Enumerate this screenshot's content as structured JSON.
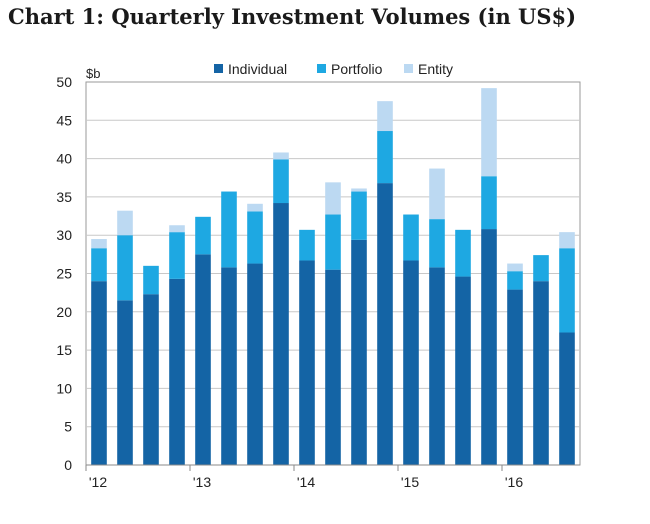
{
  "chart_data": {
    "type": "bar",
    "stacked": true,
    "title": "Chart 1: Quarterly Investment Volumes (in US$)",
    "unit_label": "$b",
    "ylim": [
      0,
      50
    ],
    "y_ticks": [
      "0",
      "5",
      "10",
      "15",
      "20",
      "25",
      "30",
      "35",
      "40",
      "45",
      "50"
    ],
    "x_tick_labels": [
      "'12",
      "'13",
      "'14",
      "'15",
      "'16"
    ],
    "legend_position": "top",
    "grid": "horizontal",
    "categories": [
      "Q1 '12",
      "Q2 '12",
      "Q3 '12",
      "Q4 '12",
      "Q1 '13",
      "Q2 '13",
      "Q3 '13",
      "Q4 '13",
      "Q1 '14",
      "Q2 '14",
      "Q3 '14",
      "Q4 '14",
      "Q1 '15",
      "Q2 '15",
      "Q3 '15",
      "Q4 '15",
      "Q1 '16",
      "Q2 '16",
      "Q3 '16"
    ],
    "series": [
      {
        "name": "Individual",
        "color": "#1464a5",
        "values": [
          24,
          21.5,
          22.3,
          24.3,
          27.5,
          25.8,
          26.3,
          34.2,
          26.7,
          25.5,
          29.4,
          36.8,
          26.7,
          25.8,
          24.6,
          30.8,
          22.9,
          24,
          17.3
        ]
      },
      {
        "name": "Portfolio",
        "color": "#1ea8e2",
        "values": [
          4.3,
          8.5,
          3.7,
          6.1,
          4.9,
          9.9,
          6.8,
          5.7,
          4,
          7.2,
          6.3,
          6.8,
          6,
          6.3,
          6.1,
          6.9,
          2.4,
          3.4,
          11
        ]
      },
      {
        "name": "Entity",
        "color": "#bcd9f2",
        "values": [
          1.2,
          3.2,
          0,
          0.9,
          0,
          0,
          1,
          0.9,
          0,
          4.2,
          0.4,
          3.9,
          0,
          6.6,
          0,
          11.5,
          1,
          0,
          2.1
        ]
      }
    ]
  }
}
